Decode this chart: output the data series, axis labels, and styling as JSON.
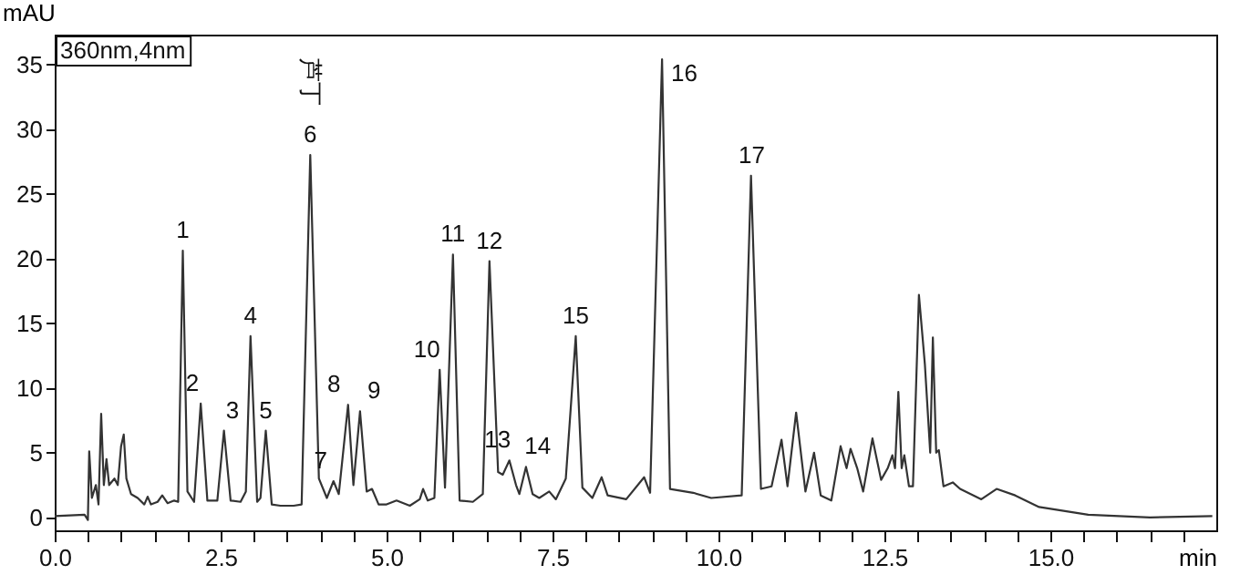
{
  "chart_data": {
    "type": "line",
    "xlabel": "min",
    "ylabel": "mAU",
    "xlim": [
      0,
      17.5
    ],
    "ylim": [
      -1,
      37.3
    ],
    "xticks": [
      {
        "value": 0,
        "label": "0.0"
      },
      {
        "value": 0.5,
        "label": null
      },
      {
        "value": 1,
        "label": null
      },
      {
        "value": 1.5,
        "label": null
      },
      {
        "value": 2,
        "label": null
      },
      {
        "value": 2.5,
        "label": "2.5"
      },
      {
        "value": 3,
        "label": null
      },
      {
        "value": 3.5,
        "label": null
      },
      {
        "value": 4,
        "label": null
      },
      {
        "value": 4.5,
        "label": null
      },
      {
        "value": 5,
        "label": "5.0"
      },
      {
        "value": 5.5,
        "label": null
      },
      {
        "value": 6,
        "label": null
      },
      {
        "value": 6.5,
        "label": null
      },
      {
        "value": 7,
        "label": null
      },
      {
        "value": 7.5,
        "label": "7.5"
      },
      {
        "value": 8,
        "label": null
      },
      {
        "value": 8.5,
        "label": null
      },
      {
        "value": 9,
        "label": null
      },
      {
        "value": 9.5,
        "label": null
      },
      {
        "value": 10,
        "label": "10.0"
      },
      {
        "value": 10.5,
        "label": null
      },
      {
        "value": 11,
        "label": null
      },
      {
        "value": 11.5,
        "label": null
      },
      {
        "value": 12,
        "label": null
      },
      {
        "value": 12.5,
        "label": "12.5"
      },
      {
        "value": 13,
        "label": null
      },
      {
        "value": 13.5,
        "label": null
      },
      {
        "value": 14,
        "label": null
      },
      {
        "value": 14.5,
        "label": null
      },
      {
        "value": 15,
        "label": "15.0"
      },
      {
        "value": 15.5,
        "label": null
      },
      {
        "value": 16,
        "label": null
      },
      {
        "value": 16.5,
        "label": null
      },
      {
        "value": 17,
        "label": null
      }
    ],
    "yticks": [
      0,
      5,
      10,
      15,
      20,
      25,
      30,
      35
    ],
    "grid": false,
    "marker": "none",
    "line_style": "solid",
    "series": [
      {
        "color": "#333333",
        "x": [
          0,
          0.45,
          0.5,
          0.52,
          0.56,
          0.62,
          0.66,
          0.7,
          0.74,
          0.78,
          0.82,
          0.9,
          0.95,
          1.0,
          1.04,
          1.08,
          1.15,
          1.25,
          1.35,
          1.4,
          1.45,
          1.55,
          1.62,
          1.7,
          1.8,
          1.86,
          1.93,
          2.0,
          2.1,
          2.2,
          2.3,
          2.45,
          2.55,
          2.65,
          2.8,
          2.88,
          2.95,
          3.05,
          3.1,
          3.18,
          3.27,
          3.4,
          3.6,
          3.72,
          3.85,
          3.98,
          4.1,
          4.2,
          4.28,
          4.42,
          4.5,
          4.6,
          4.7,
          4.78,
          4.88,
          5.0,
          5.15,
          5.35,
          5.5,
          5.55,
          5.62,
          5.72,
          5.8,
          5.88,
          6.0,
          6.1,
          6.3,
          6.45,
          6.55,
          6.68,
          6.75,
          6.85,
          6.95,
          7.0,
          7.1,
          7.2,
          7.3,
          7.45,
          7.55,
          7.7,
          7.85,
          7.95,
          8.1,
          8.24,
          8.33,
          8.61,
          8.88,
          8.97,
          9.15,
          9.27,
          9.62,
          9.89,
          10.35,
          10.49,
          10.64,
          10.8,
          10.95,
          11.04,
          11.17,
          11.31,
          11.44,
          11.54,
          11.7,
          11.84,
          11.93,
          11.99,
          12.09,
          12.18,
          12.32,
          12.45,
          12.55,
          12.62,
          12.66,
          12.71,
          12.76,
          12.8,
          12.87,
          12.93,
          13.02,
          13.11,
          13.19,
          13.23,
          13.28,
          13.32,
          13.39,
          13.53,
          13.64,
          13.96,
          14.19,
          14.47,
          14.83,
          15.57,
          16.5,
          17.44
        ],
        "values": [
          0.1,
          0.2,
          -0.2,
          5.1,
          1.5,
          2.5,
          1.0,
          8.0,
          2.5,
          4.5,
          2.5,
          3.0,
          2.5,
          5.5,
          6.4,
          3.0,
          1.8,
          1.5,
          1.0,
          1.6,
          1.0,
          1.2,
          1.7,
          1.1,
          1.3,
          1.2,
          20.6,
          2.0,
          1.2,
          8.8,
          1.3,
          1.3,
          6.7,
          1.3,
          1.2,
          2.0,
          14.0,
          1.2,
          1.5,
          6.7,
          1.0,
          0.9,
          0.9,
          1.0,
          28.0,
          3.0,
          1.5,
          2.8,
          1.8,
          8.7,
          2.5,
          8.2,
          2.0,
          2.2,
          1.0,
          1.0,
          1.3,
          0.9,
          1.4,
          2.2,
          1.3,
          1.5,
          11.4,
          2.3,
          20.3,
          1.3,
          1.2,
          1.8,
          19.8,
          3.5,
          3.3,
          4.4,
          2.5,
          1.8,
          3.9,
          1.8,
          1.5,
          2.0,
          1.4,
          3.0,
          14.0,
          2.3,
          1.5,
          3.1,
          1.7,
          1.4,
          3.1,
          1.9,
          35.4,
          2.2,
          1.9,
          1.5,
          1.7,
          26.4,
          2.2,
          2.4,
          6.0,
          2.4,
          8.1,
          2.0,
          5.0,
          1.7,
          1.3,
          5.5,
          3.8,
          5.3,
          3.8,
          2.0,
          6.1,
          2.9,
          3.8,
          4.8,
          3.8,
          9.7,
          3.8,
          4.8,
          2.4,
          2.4,
          17.2,
          11.8,
          5.0,
          13.9,
          5.0,
          5.2,
          2.4,
          2.7,
          2.2,
          1.4,
          2.2,
          1.7,
          0.8,
          0.2,
          0.0,
          0.1
        ]
      }
    ],
    "annotations": [
      "360nm,4nm",
      {
        "text": "1",
        "x": 1.93,
        "y": 20.6
      },
      {
        "text": "2",
        "x": 2.2,
        "y": 8.8
      },
      {
        "text": "3",
        "x": 2.55,
        "y": 6.7
      },
      {
        "text": "4",
        "x": 2.95,
        "y": 14.0
      },
      {
        "text": "5",
        "x": 3.18,
        "y": 6.7
      },
      {
        "text": "6",
        "x": 3.85,
        "y": 28.0
      },
      {
        "text": "芦丁",
        "x": 3.85,
        "y": 28.0
      },
      {
        "text": "7",
        "x": 4.2,
        "y": 2.8
      },
      {
        "text": "8",
        "x": 4.42,
        "y": 8.7
      },
      {
        "text": "9",
        "x": 4.6,
        "y": 8.2
      },
      {
        "text": "10",
        "x": 5.8,
        "y": 11.4
      },
      {
        "text": "11",
        "x": 6.0,
        "y": 20.3
      },
      {
        "text": "12",
        "x": 6.55,
        "y": 19.8
      },
      {
        "text": "13",
        "x": 6.85,
        "y": 4.4
      },
      {
        "text": "14",
        "x": 7.1,
        "y": 3.9
      },
      {
        "text": "15",
        "x": 7.85,
        "y": 14.0
      },
      {
        "text": "16",
        "x": 9.15,
        "y": 35.4
      },
      {
        "text": "17",
        "x": 10.5,
        "y": 26.4
      }
    ]
  }
}
